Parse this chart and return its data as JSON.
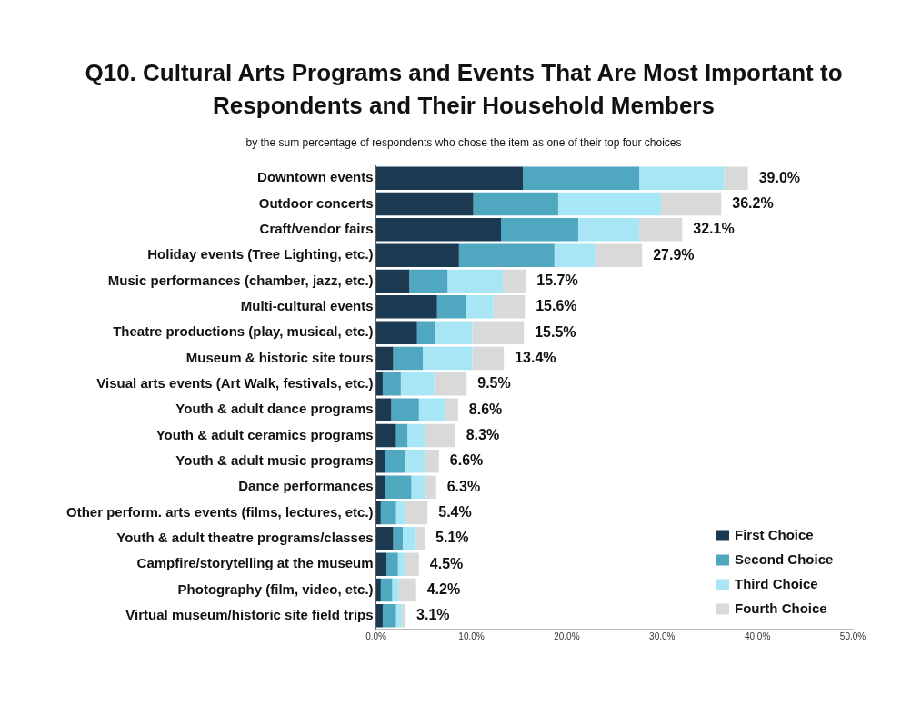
{
  "chart_data": {
    "type": "bar",
    "orientation": "horizontal",
    "stacked": true,
    "title": "Q10. Cultural Arts Programs and Events That Are Most Important to Respondents and Their Household Members",
    "subtitle": "by the sum percentage of respondents who chose the item as one of their top four choices",
    "categories": [
      "Downtown events",
      "Outdoor concerts",
      "Craft/vendor fairs",
      "Holiday events (Tree Lighting, etc.)",
      "Music performances (chamber, jazz, etc.)",
      "Multi-cultural events",
      "Theatre productions (play, musical, etc.)",
      "Museum & historic site tours",
      "Visual arts events (Art Walk, festivals, etc.)",
      "Youth & adult dance programs",
      "Youth & adult ceramics programs",
      "Youth & adult music programs",
      "Dance performances",
      "Other perform. arts events (films, lectures, etc.)",
      "Youth & adult theatre programs/classes",
      "Campfire/storytelling at the museum",
      "Photography (film, video, etc.)",
      "Virtual museum/historic site field trips"
    ],
    "series": [
      {
        "name": "First Choice",
        "color": "#1b3a52",
        "values": [
          15.4,
          10.2,
          13.1,
          8.7,
          3.5,
          6.4,
          4.3,
          1.8,
          0.7,
          1.6,
          2.1,
          0.9,
          1.0,
          0.5,
          1.8,
          1.1,
          0.5,
          0.7
        ]
      },
      {
        "name": "Second Choice",
        "color": "#4fa8c0",
        "values": [
          12.2,
          8.9,
          8.1,
          10.0,
          4.0,
          3.0,
          1.9,
          3.1,
          1.9,
          2.9,
          1.2,
          2.1,
          2.7,
          1.6,
          1.0,
          1.2,
          1.2,
          1.4
        ]
      },
      {
        "name": "Third Choice",
        "color": "#a8e6f5",
        "values": [
          8.9,
          10.8,
          6.4,
          4.3,
          5.8,
          2.9,
          3.9,
          5.2,
          3.5,
          2.8,
          1.9,
          2.2,
          1.5,
          1.0,
          1.4,
          0.8,
          0.7,
          0.6
        ]
      },
      {
        "name": "Fourth Choice",
        "color": "#d9d9d9",
        "values": [
          2.5,
          6.3,
          4.5,
          4.9,
          2.4,
          3.3,
          5.4,
          3.3,
          3.4,
          1.3,
          3.1,
          1.4,
          1.1,
          2.3,
          0.9,
          1.4,
          1.8,
          0.4
        ]
      }
    ],
    "totals": [
      "39.0%",
      "36.2%",
      "32.1%",
      "27.9%",
      "15.7%",
      "15.6%",
      "15.5%",
      "13.4%",
      "9.5%",
      "8.6%",
      "8.3%",
      "6.6%",
      "6.3%",
      "5.4%",
      "5.1%",
      "4.5%",
      "4.2%",
      "3.1%"
    ],
    "xlim": [
      0,
      50
    ],
    "xticks": [
      {
        "value": 0,
        "label": "0.0%"
      },
      {
        "value": 10,
        "label": "10.0%"
      },
      {
        "value": 20,
        "label": "20.0%"
      },
      {
        "value": 30,
        "label": "30.0%"
      },
      {
        "value": 40,
        "label": "40.0%"
      },
      {
        "value": 50,
        "label": "50.0%"
      }
    ],
    "legend": "bottom right",
    "grid": false
  }
}
